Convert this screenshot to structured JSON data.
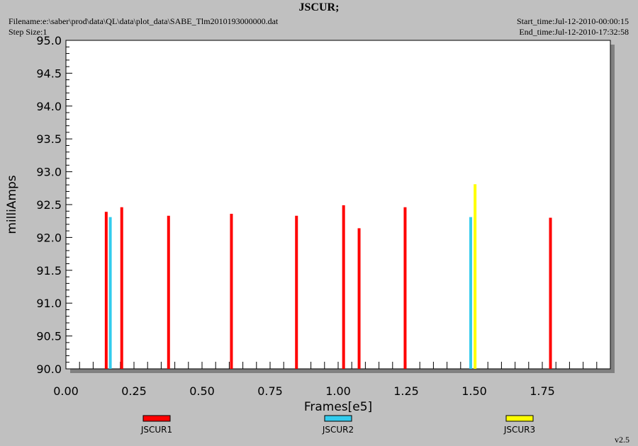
{
  "header": {
    "title": "JSCUR;",
    "filename": "Filename:e:\\saber\\prod\\data\\QL\\data\\plot_data\\SABE_Tlm2010193000000.dat",
    "step_size": "Step Size:1",
    "start_time": "Start_time:Jul-12-2010-00:00:15",
    "end_time": "End_time:Jul-12-2010-17:32:58"
  },
  "footer": {
    "version": "v2.5"
  },
  "colors": {
    "background": "#c0c0c0",
    "plot_area": "#ffffff",
    "shadow": "#808080",
    "JSCUR1": "#ff0000",
    "JSCUR2": "#33ccee",
    "JSCUR3": "#ffff00"
  },
  "chart_data": {
    "type": "bar",
    "title": "JSCUR;",
    "xlabel": "Frames[e5]",
    "ylabel": "milliAmps",
    "xlim": [
      0.0,
      2.0
    ],
    "ylim": [
      90.0,
      95.0
    ],
    "x_ticks": [
      "0.00",
      "0.25",
      "0.50",
      "0.75",
      "1.00",
      "1.25",
      "1.50",
      "1.75"
    ],
    "y_ticks": [
      "90.0",
      "90.5",
      "91.0",
      "91.5",
      "92.0",
      "92.5",
      "93.0",
      "93.5",
      "94.0",
      "94.5",
      "95.0"
    ],
    "grid": false,
    "legend_position": "bottom",
    "series": [
      {
        "name": "JSCUR1",
        "color": "#ff0000",
        "points": [
          {
            "x": 0.148,
            "y": 92.39
          },
          {
            "x": 0.205,
            "y": 92.46
          },
          {
            "x": 0.377,
            "y": 92.33
          },
          {
            "x": 0.608,
            "y": 92.36
          },
          {
            "x": 0.847,
            "y": 92.33
          },
          {
            "x": 1.02,
            "y": 92.49
          },
          {
            "x": 1.077,
            "y": 92.14
          },
          {
            "x": 1.246,
            "y": 92.46
          },
          {
            "x": 1.78,
            "y": 92.3
          }
        ]
      },
      {
        "name": "JSCUR2",
        "color": "#33ccee",
        "points": [
          {
            "x": 0.163,
            "y": 92.31
          },
          {
            "x": 1.487,
            "y": 92.31
          }
        ]
      },
      {
        "name": "JSCUR3",
        "color": "#ffff00",
        "points": [
          {
            "x": 1.503,
            "y": 92.81
          }
        ]
      }
    ]
  }
}
